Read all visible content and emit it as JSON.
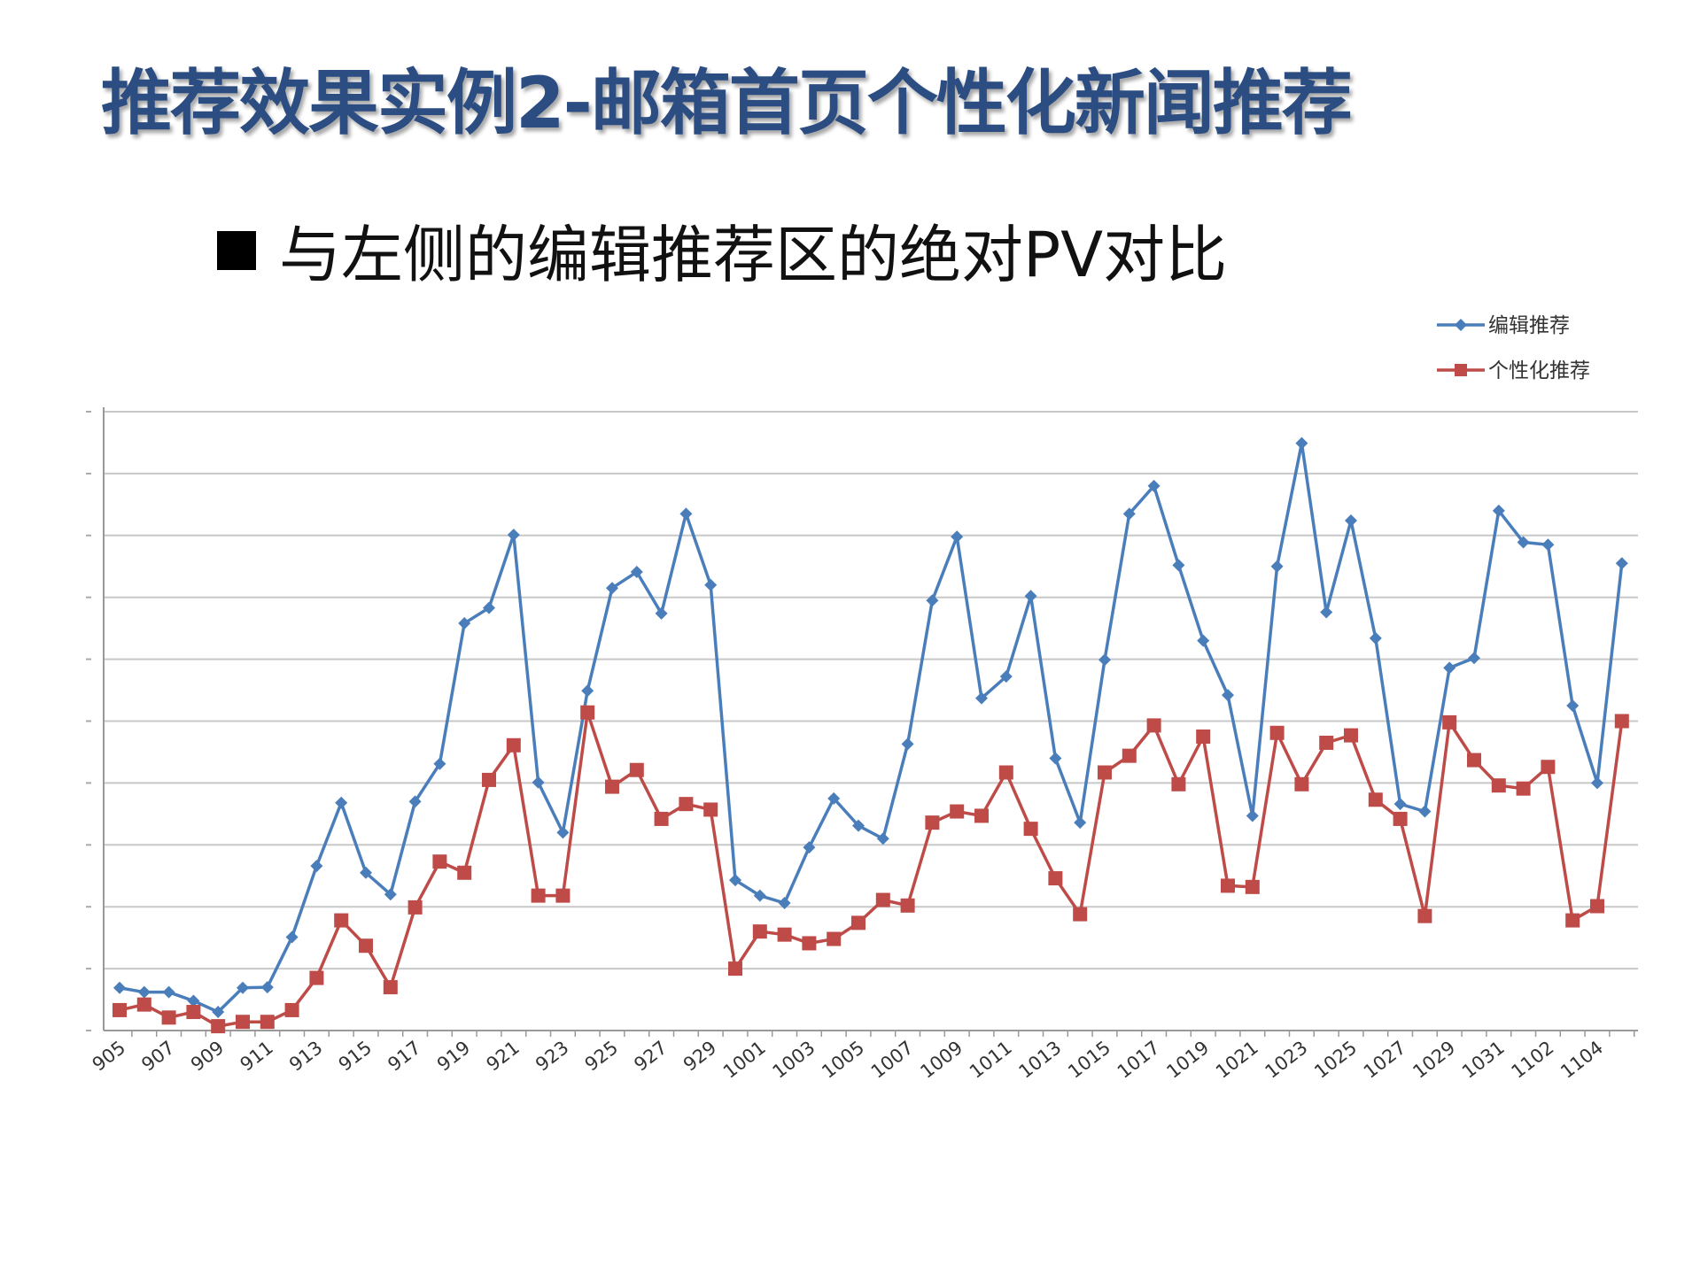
{
  "slide": {
    "title": "推荐效果实例2-邮箱首页个性化新闻推荐",
    "bullet": "与左侧的编辑推荐区的绝对PV对比"
  },
  "chart_data": {
    "type": "line",
    "title": "",
    "xlabel": "",
    "ylabel": "",
    "y_tick_labels_shown": false,
    "ylim": [
      0,
      10
    ],
    "grid": true,
    "legend_position": "top-right",
    "x": [
      "905",
      "906",
      "907",
      "908",
      "909",
      "910",
      "911",
      "912",
      "913",
      "914",
      "915",
      "916",
      "917",
      "918",
      "919",
      "920",
      "921",
      "922",
      "923",
      "924",
      "925",
      "926",
      "927",
      "928",
      "929",
      "930",
      "1001",
      "1002",
      "1003",
      "1004",
      "1005",
      "1006",
      "1007",
      "1008",
      "1009",
      "1010",
      "1011",
      "1012",
      "1013",
      "1014",
      "1015",
      "1016",
      "1017",
      "1018",
      "1019",
      "1020",
      "1021",
      "1022",
      "1023",
      "1024",
      "1025",
      "1026",
      "1027",
      "1028",
      "1029",
      "1030",
      "1031",
      "1101",
      "1102",
      "1103",
      "1104",
      "1105"
    ],
    "x_tick_labels": [
      "905",
      "907",
      "909",
      "911",
      "913",
      "915",
      "917",
      "919",
      "921",
      "923",
      "925",
      "927",
      "929",
      "1001",
      "1003",
      "1005",
      "1007",
      "1009",
      "1011",
      "1013",
      "1015",
      "1017",
      "1019",
      "1021",
      "1023",
      "1025",
      "1027",
      "1029",
      "1031",
      "1102",
      "1104"
    ],
    "series": [
      {
        "name": "编辑推荐",
        "color": "#4a7ebb",
        "marker": "diamond",
        "values": [
          0.69,
          0.62,
          0.62,
          0.48,
          0.3,
          0.69,
          0.7,
          1.51,
          2.66,
          3.68,
          2.55,
          2.2,
          3.7,
          4.31,
          6.58,
          6.83,
          8.01,
          4.01,
          3.2,
          5.49,
          7.15,
          7.41,
          6.74,
          8.35,
          7.2,
          2.43,
          2.18,
          2.06,
          2.96,
          3.75,
          3.31,
          3.1,
          4.63,
          6.95,
          7.98,
          5.37,
          5.72,
          7.02,
          4.4,
          3.36,
          5.99,
          8.35,
          8.8,
          7.52,
          6.3,
          5.42,
          3.47,
          7.5,
          9.49,
          6.76,
          8.24,
          6.34,
          3.66,
          3.54,
          5.86,
          6.02,
          8.4,
          7.89,
          7.85,
          5.25,
          4.0,
          7.55
        ]
      },
      {
        "name": "个性化推荐",
        "color": "#be4b48",
        "marker": "square",
        "values": [
          0.33,
          0.42,
          0.21,
          0.3,
          0.07,
          0.14,
          0.14,
          0.33,
          0.85,
          1.78,
          1.37,
          0.7,
          1.99,
          2.73,
          2.55,
          4.05,
          4.61,
          2.18,
          2.18,
          5.14,
          3.94,
          4.21,
          3.42,
          3.66,
          3.57,
          1.0,
          1.6,
          1.55,
          1.41,
          1.48,
          1.74,
          2.11,
          2.02,
          3.36,
          3.54,
          3.47,
          4.17,
          3.26,
          2.46,
          1.88,
          4.17,
          4.44,
          4.93,
          3.98,
          4.75,
          2.34,
          2.32,
          4.81,
          3.98,
          4.65,
          4.77,
          3.73,
          3.42,
          1.85,
          4.98,
          4.37,
          3.96,
          3.91,
          4.26,
          1.78,
          2.01,
          5.0
        ]
      }
    ]
  }
}
